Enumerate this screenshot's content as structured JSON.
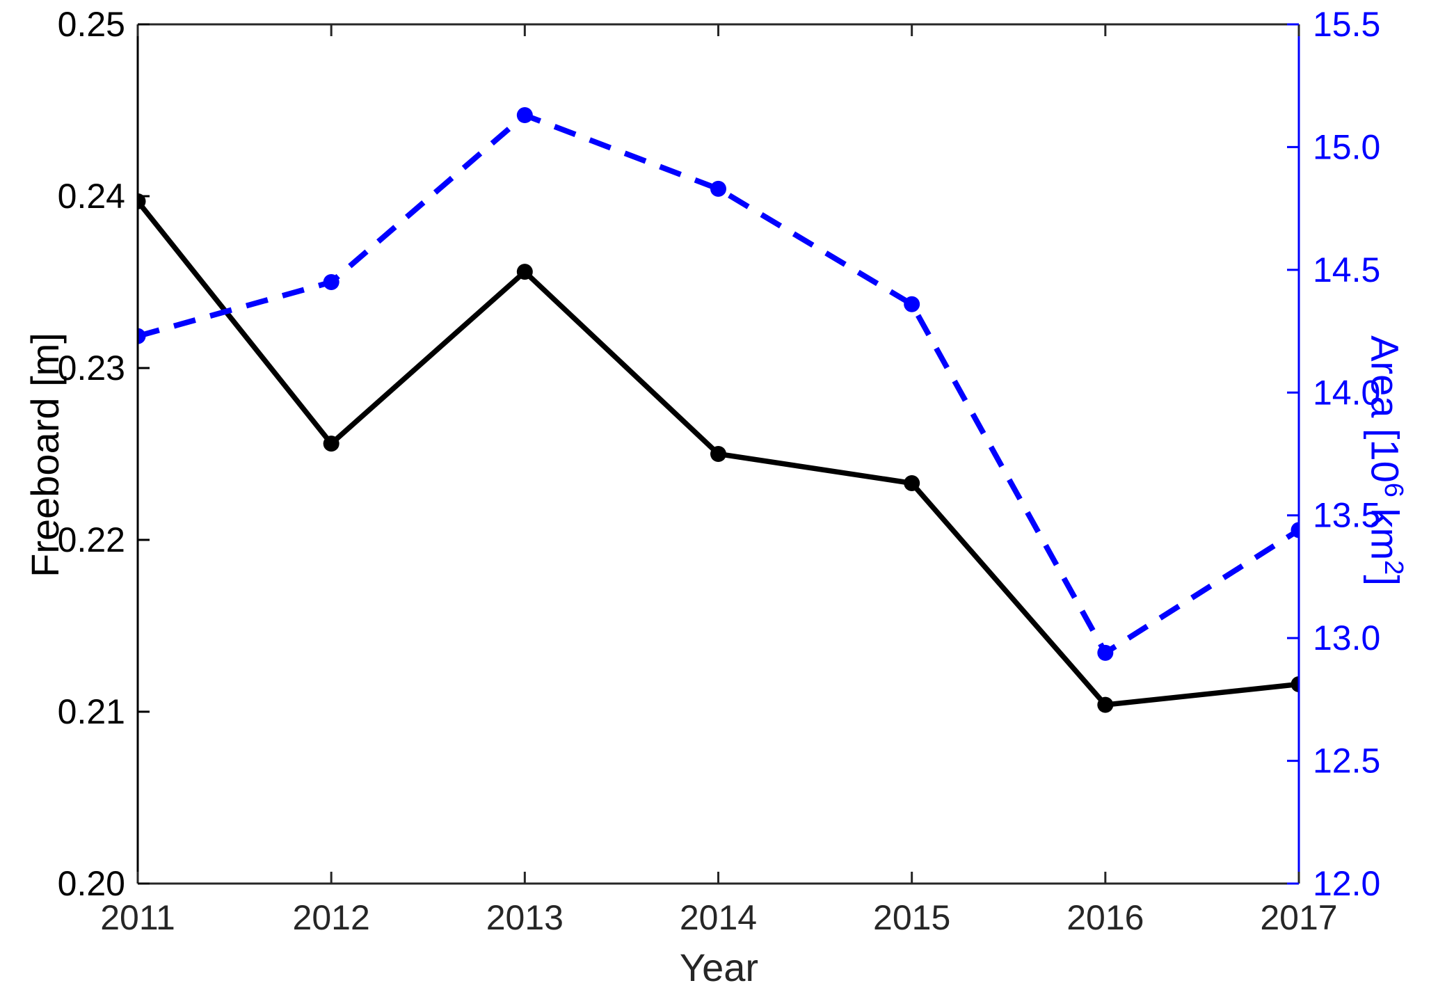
{
  "figure": {
    "background": "#ffffff",
    "xlabel": "Year",
    "ylabel_left": "Freeboard [m]",
    "ylabel_right_parts": {
      "p1": "Area [10",
      "sup1": "6",
      "p2": " km",
      "sup2": "2",
      "p3": "]"
    },
    "colors": {
      "left_axis": "#000000",
      "right_axis": "#0000ff",
      "x_axis": "#262626",
      "freeboard_series": "#000000",
      "area_series": "#0000ff"
    }
  },
  "chart_data": {
    "type": "line",
    "title": "",
    "xlabel": "Year",
    "ylabel_left": "Freeboard [m]",
    "ylabel_right": "Area [10^6 km^2]",
    "grid": false,
    "legend": null,
    "x": [
      2011,
      2012,
      2013,
      2014,
      2015,
      2016,
      2017
    ],
    "x_tick_labels": [
      "2011",
      "2012",
      "2013",
      "2014",
      "2015",
      "2016",
      "2017"
    ],
    "series": [
      {
        "name": "Freeboard [m]",
        "axis": "left",
        "line_style": "solid",
        "marker": "circle",
        "color": "#000000",
        "values": [
          0.2397,
          0.2256,
          0.2356,
          0.225,
          0.2233,
          0.2104,
          0.2116
        ]
      },
      {
        "name": "Area [10^6 km^2]",
        "axis": "right",
        "line_style": "dashed",
        "marker": "circle",
        "color": "#0000ff",
        "values": [
          14.23,
          14.45,
          15.13,
          14.83,
          14.36,
          12.94,
          13.44
        ]
      }
    ],
    "left_axis": {
      "range": [
        0.2,
        0.25
      ],
      "ticks": [
        0.25,
        0.24,
        0.23,
        0.22,
        0.21,
        0.2
      ],
      "tick_labels": [
        "0.25",
        "0.24",
        "0.23",
        "0.22",
        "0.21",
        "0.20"
      ],
      "color": "#000000"
    },
    "right_axis": {
      "range": [
        12.0,
        15.5
      ],
      "ticks": [
        15.5,
        15.0,
        14.5,
        14.0,
        13.5,
        13.0,
        12.5,
        12.0
      ],
      "tick_labels": [
        "15.5",
        "15.0",
        "14.5",
        "14.0",
        "13.5",
        "13.0",
        "12.5",
        "12.0"
      ],
      "color": "#0000ff"
    },
    "x_axis": {
      "color": "#262626"
    }
  }
}
